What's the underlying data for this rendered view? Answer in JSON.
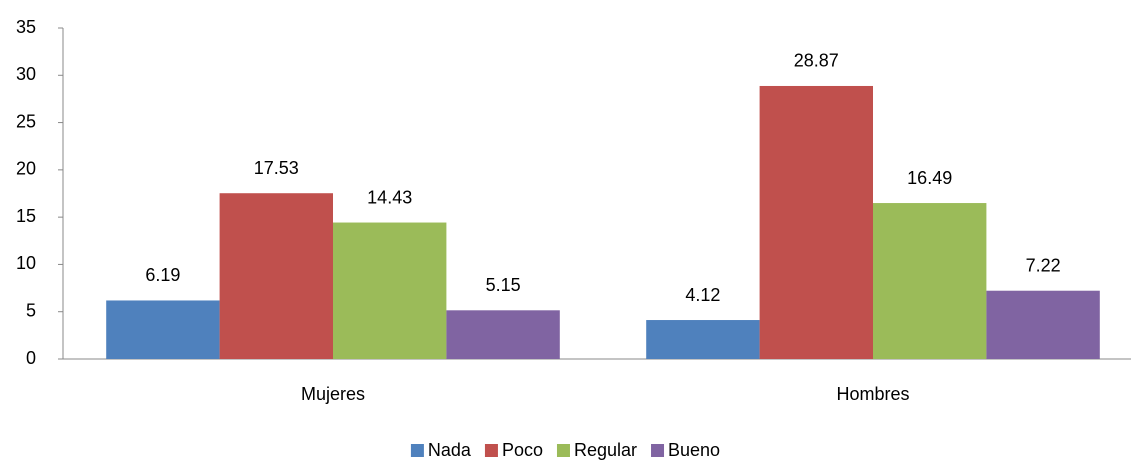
{
  "chart_data": {
    "type": "bar",
    "categories": [
      "Mujeres",
      "Hombres"
    ],
    "series": [
      {
        "name": "Nada",
        "color": "#4f81bd",
        "values": [
          6.19,
          4.12
        ]
      },
      {
        "name": "Poco",
        "color": "#c0504d",
        "values": [
          17.53,
          28.87
        ]
      },
      {
        "name": "Regular",
        "color": "#9bbb59",
        "values": [
          14.43,
          16.49
        ]
      },
      {
        "name": "Bueno",
        "color": "#8064a2",
        "values": [
          5.15,
          7.22
        ]
      }
    ],
    "ylim": [
      0,
      35
    ],
    "yticks": [
      0,
      5,
      10,
      15,
      20,
      25,
      30,
      35
    ],
    "grid": false,
    "legend": "bottom"
  }
}
